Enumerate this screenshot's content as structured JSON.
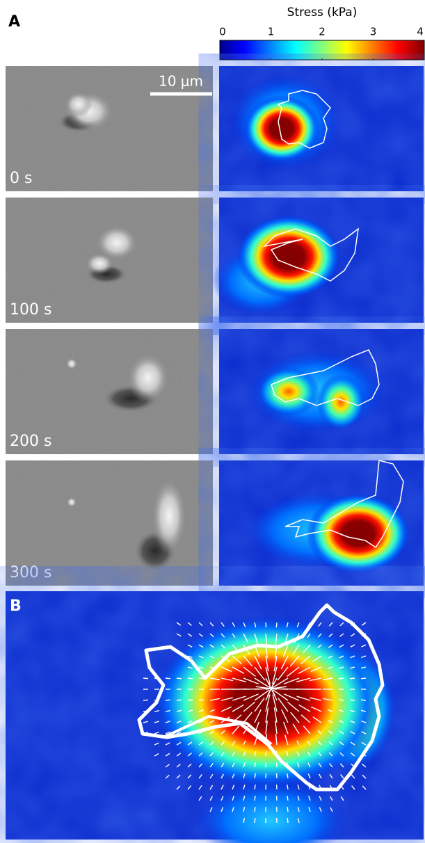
{
  "panel_a": {
    "label": "A",
    "scale_bar": "10 µm",
    "colorbar": {
      "title": "Stress (kPa)",
      "ticks": [
        0,
        1,
        2,
        3,
        4
      ]
    },
    "frames": [
      {
        "time": "0 s"
      },
      {
        "time": "100 s"
      },
      {
        "time": "200 s"
      },
      {
        "time": "300 s"
      }
    ]
  },
  "panel_b": {
    "label": "B"
  }
}
